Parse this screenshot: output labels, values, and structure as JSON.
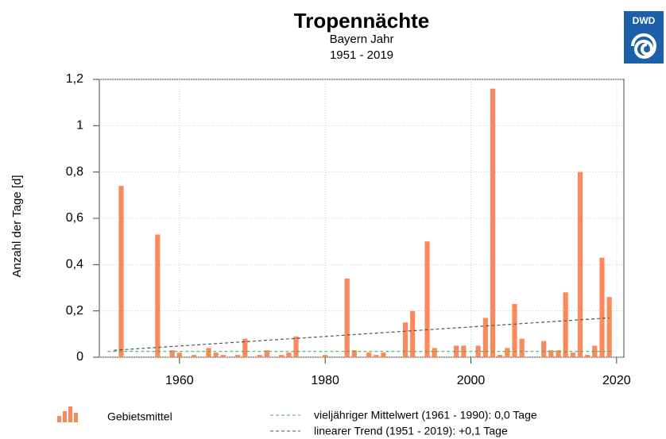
{
  "chart_data": {
    "type": "bar",
    "title": "Tropennächte",
    "subtitle": "Bayern Jahr",
    "period": "1951 - 2019",
    "logo": "DWD",
    "ylabel": "Anzahl der Tage [d]",
    "x": [
      1951,
      1952,
      1953,
      1954,
      1955,
      1956,
      1957,
      1958,
      1959,
      1960,
      1961,
      1962,
      1963,
      1964,
      1965,
      1966,
      1967,
      1968,
      1969,
      1970,
      1971,
      1972,
      1973,
      1974,
      1975,
      1976,
      1977,
      1978,
      1979,
      1980,
      1981,
      1982,
      1983,
      1984,
      1985,
      1986,
      1987,
      1988,
      1989,
      1990,
      1991,
      1992,
      1993,
      1994,
      1995,
      1996,
      1997,
      1998,
      1999,
      2000,
      2001,
      2002,
      2003,
      2004,
      2005,
      2006,
      2007,
      2008,
      2009,
      2010,
      2011,
      2012,
      2013,
      2014,
      2015,
      2016,
      2017,
      2018,
      2019
    ],
    "values": [
      0,
      0.74,
      0,
      0,
      0,
      0,
      0.53,
      0,
      0.03,
      0.02,
      0,
      0.01,
      0,
      0.04,
      0.02,
      0.01,
      0,
      0.01,
      0.08,
      0,
      0.01,
      0.03,
      0,
      0.01,
      0.02,
      0.09,
      0,
      0,
      0,
      0.01,
      0,
      0,
      0.34,
      0.03,
      0,
      0.02,
      0.01,
      0.02,
      0,
      0,
      0.15,
      0.2,
      0,
      0.5,
      0.04,
      0,
      0,
      0.05,
      0.05,
      0,
      0.05,
      0.17,
      1.16,
      0.01,
      0.04,
      0.23,
      0.08,
      0,
      0,
      0.07,
      0.03,
      0.03,
      0.28,
      0.02,
      0.8,
      0.01,
      0.05,
      0.43,
      0.26
    ],
    "color": "#f98a5c",
    "mean": 0.025,
    "mean_color": "#4caf50",
    "trend": {
      "x": [
        1951,
        2019
      ],
      "values": [
        0.03,
        0.17
      ],
      "color": "#555555"
    },
    "xlim": [
      1949,
      2021
    ],
    "xticks": [
      1960,
      1980,
      2000,
      2020
    ],
    "ylim": [
      0,
      1.2
    ],
    "yticks": [
      0,
      {
        "value": 0.2,
        "label": "0,2"
      },
      {
        "value": 0.4,
        "label": "0,4"
      },
      {
        "value": 0.6,
        "label": "0,6"
      },
      {
        "value": 0.8,
        "label": "0,8"
      },
      1,
      {
        "value": 1.2,
        "label": "1,2"
      }
    ],
    "grid": true,
    "legend": [
      "Gebietsmittel",
      "vieljähriger Mittelwert (1961 - 1990): 0,0 Tage",
      "linearer Trend (1951 - 2019): +0,1 Tage"
    ]
  }
}
